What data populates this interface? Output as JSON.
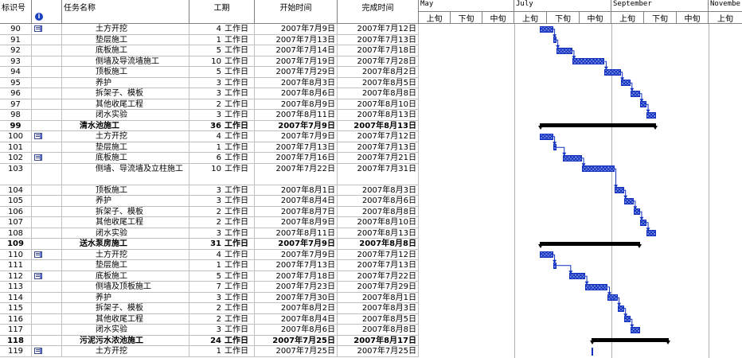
{
  "columns": {
    "id": "标识号",
    "name": "任务名称",
    "duration": "工期",
    "start": "开始时间",
    "finish": "完成时间"
  },
  "timescale": {
    "months": [
      "May",
      "July",
      "September",
      "Novembe"
    ],
    "dekads": [
      "上旬",
      "下旬",
      "中旬",
      "上旬",
      "下旬",
      "中旬",
      "上旬",
      "下旬",
      "中旬",
      "上旬"
    ]
  },
  "icons": {
    "info": "info-icon",
    "task_note": "task-note-icon"
  },
  "colors": {
    "bar_fill": "#7d8de0",
    "bar_border": "#1030c0",
    "summary_bar": "#000000",
    "link_arrow": "#1030c0",
    "grid": "#c0c0c0"
  },
  "tasks": [
    {
      "id": "90",
      "name": "土方开挖",
      "dur_num": "4",
      "dur_unit": "工作日",
      "start": "2007年7月9日",
      "finish": "2007年7月12日",
      "icon": true,
      "type": "subtask"
    },
    {
      "id": "91",
      "name": "垫层施工",
      "dur_num": "1",
      "dur_unit": "工作日",
      "start": "2007年7月13日",
      "finish": "2007年7月13日",
      "icon": false,
      "type": "subtask"
    },
    {
      "id": "92",
      "name": "底板施工",
      "dur_num": "5",
      "dur_unit": "工作日",
      "start": "2007年7月14日",
      "finish": "2007年7月18日",
      "icon": false,
      "type": "subtask"
    },
    {
      "id": "93",
      "name": "侧墙及导流墙施工",
      "dur_num": "10",
      "dur_unit": "工作日",
      "start": "2007年7月19日",
      "finish": "2007年7月28日",
      "icon": false,
      "type": "subtask"
    },
    {
      "id": "94",
      "name": "顶板施工",
      "dur_num": "5",
      "dur_unit": "工作日",
      "start": "2007年7月29日",
      "finish": "2007年8月2日",
      "icon": false,
      "type": "subtask"
    },
    {
      "id": "95",
      "name": "养护",
      "dur_num": "3",
      "dur_unit": "工作日",
      "start": "2007年8月3日",
      "finish": "2007年8月5日",
      "icon": false,
      "type": "subtask"
    },
    {
      "id": "96",
      "name": "拆架子、模板",
      "dur_num": "3",
      "dur_unit": "工作日",
      "start": "2007年8月6日",
      "finish": "2007年8月8日",
      "icon": false,
      "type": "subtask"
    },
    {
      "id": "97",
      "name": "其他收尾工程",
      "dur_num": "2",
      "dur_unit": "工作日",
      "start": "2007年8月9日",
      "finish": "2007年8月10日",
      "icon": false,
      "type": "subtask"
    },
    {
      "id": "98",
      "name": "闭水实验",
      "dur_num": "3",
      "dur_unit": "工作日",
      "start": "2007年8月11日",
      "finish": "2007年8月13日",
      "icon": false,
      "type": "subtask"
    },
    {
      "id": "99",
      "name": "清水池施工",
      "dur_num": "36",
      "dur_unit": "工作日",
      "start": "2007年7月9日",
      "finish": "2007年8月13日",
      "icon": false,
      "type": "summary"
    },
    {
      "id": "100",
      "name": "土方开挖",
      "dur_num": "4",
      "dur_unit": "工作日",
      "start": "2007年7月9日",
      "finish": "2007年7月12日",
      "icon": true,
      "type": "subtask"
    },
    {
      "id": "101",
      "name": "垫层施工",
      "dur_num": "1",
      "dur_unit": "工作日",
      "start": "2007年7月13日",
      "finish": "2007年7月13日",
      "icon": false,
      "type": "subtask"
    },
    {
      "id": "102",
      "name": "底板施工",
      "dur_num": "6",
      "dur_unit": "工作日",
      "start": "2007年7月16日",
      "finish": "2007年7月21日",
      "icon": true,
      "type": "subtask"
    },
    {
      "id": "103",
      "name": "侧墙、导流墙及立柱施工",
      "dur_num": "10",
      "dur_unit": "工作日",
      "start": "2007年7月22日",
      "finish": "2007年7月31日",
      "icon": false,
      "type": "subtask",
      "tall": true
    },
    {
      "id": "104",
      "name": "顶板施工",
      "dur_num": "3",
      "dur_unit": "工作日",
      "start": "2007年8月1日",
      "finish": "2007年8月3日",
      "icon": false,
      "type": "subtask"
    },
    {
      "id": "105",
      "name": "养护",
      "dur_num": "3",
      "dur_unit": "工作日",
      "start": "2007年8月4日",
      "finish": "2007年8月6日",
      "icon": false,
      "type": "subtask"
    },
    {
      "id": "106",
      "name": "拆架子、模板",
      "dur_num": "2",
      "dur_unit": "工作日",
      "start": "2007年8月7日",
      "finish": "2007年8月8日",
      "icon": false,
      "type": "subtask"
    },
    {
      "id": "107",
      "name": "其他收尾工程",
      "dur_num": "2",
      "dur_unit": "工作日",
      "start": "2007年8月9日",
      "finish": "2007年8月10日",
      "icon": false,
      "type": "subtask"
    },
    {
      "id": "108",
      "name": "闭水实验",
      "dur_num": "3",
      "dur_unit": "工作日",
      "start": "2007年8月11日",
      "finish": "2007年8月13日",
      "icon": false,
      "type": "subtask"
    },
    {
      "id": "109",
      "name": "送水泵房施工",
      "dur_num": "31",
      "dur_unit": "工作日",
      "start": "2007年7月9日",
      "finish": "2007年8月8日",
      "icon": false,
      "type": "summary"
    },
    {
      "id": "110",
      "name": "土方开挖",
      "dur_num": "4",
      "dur_unit": "工作日",
      "start": "2007年7月9日",
      "finish": "2007年7月12日",
      "icon": true,
      "type": "subtask"
    },
    {
      "id": "111",
      "name": "垫层施工",
      "dur_num": "1",
      "dur_unit": "工作日",
      "start": "2007年7月13日",
      "finish": "2007年7月13日",
      "icon": false,
      "type": "subtask"
    },
    {
      "id": "112",
      "name": "底板施工",
      "dur_num": "5",
      "dur_unit": "工作日",
      "start": "2007年7月18日",
      "finish": "2007年7月22日",
      "icon": true,
      "type": "subtask"
    },
    {
      "id": "113",
      "name": "侧墙及顶板施工",
      "dur_num": "7",
      "dur_unit": "工作日",
      "start": "2007年7月23日",
      "finish": "2007年7月29日",
      "icon": false,
      "type": "subtask"
    },
    {
      "id": "114",
      "name": "养护",
      "dur_num": "3",
      "dur_unit": "工作日",
      "start": "2007年7月30日",
      "finish": "2007年8月1日",
      "icon": false,
      "type": "subtask"
    },
    {
      "id": "115",
      "name": "拆架子、模板",
      "dur_num": "2",
      "dur_unit": "工作日",
      "start": "2007年8月2日",
      "finish": "2007年8月3日",
      "icon": false,
      "type": "subtask"
    },
    {
      "id": "116",
      "name": "其他收尾工程",
      "dur_num": "2",
      "dur_unit": "工作日",
      "start": "2007年8月4日",
      "finish": "2007年8月5日",
      "icon": false,
      "type": "subtask"
    },
    {
      "id": "117",
      "name": "闭水实验",
      "dur_num": "3",
      "dur_unit": "工作日",
      "start": "2007年8月6日",
      "finish": "2007年8月8日",
      "icon": false,
      "type": "subtask"
    },
    {
      "id": "118",
      "name": "污泥污水浓池施工",
      "dur_num": "24",
      "dur_unit": "工作日",
      "start": "2007年7月25日",
      "finish": "2007年8月17日",
      "icon": false,
      "type": "summary"
    },
    {
      "id": "119",
      "name": "土方开挖",
      "dur_num": "1",
      "dur_unit": "工作日",
      "start": "2007年7月25日",
      "finish": "2007年7月25日",
      "icon": true,
      "type": "subtask"
    }
  ]
}
